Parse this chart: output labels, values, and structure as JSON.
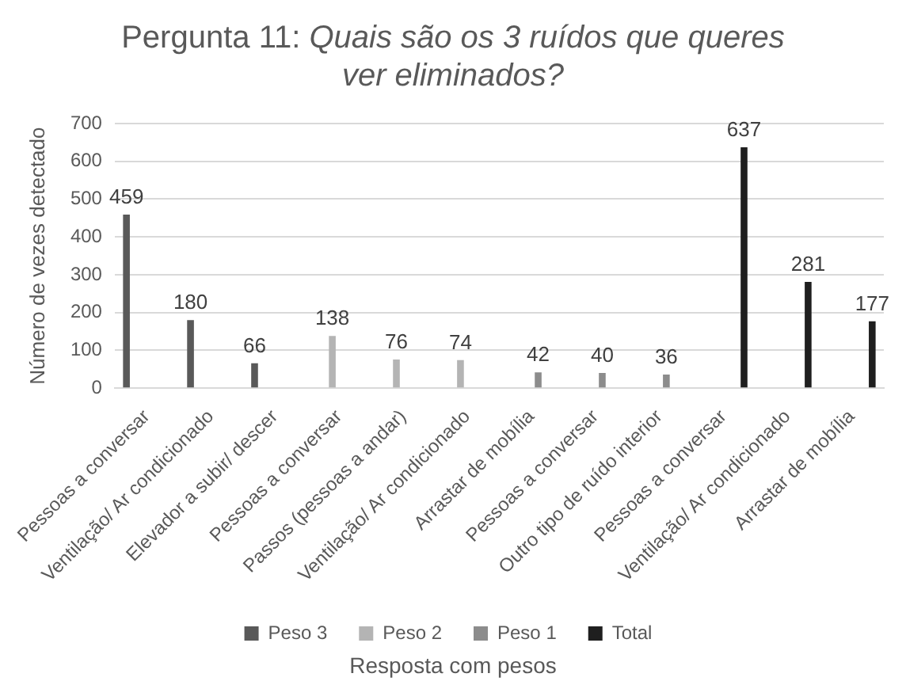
{
  "chart_data": {
    "type": "bar",
    "title": "Pergunta 11: Quais são os 3 ruídos que queres ver eliminados?",
    "xlabel": "Resposta com pesos",
    "ylabel": "Número de vezes detectado",
    "categories": [
      "Pessoas a conversar",
      "Ventilação/ Ar condicionado",
      "Elevador a subir/ descer",
      "Pessoas a conversar",
      "Passos (pessoas a andar)",
      "Ventilação/ Ar condicionado",
      "Arrastar de mobília",
      "Pessoas a conversar",
      "Outro tipo de ruído interior",
      "Pessoas a conversar",
      "Ventilação/ Ar condicionado",
      "Arrastar de mobília"
    ],
    "series": [
      {
        "name": "Peso 3",
        "color": "#595959",
        "values": [
          459,
          180,
          66,
          null,
          null,
          null,
          null,
          null,
          null,
          null,
          null,
          null
        ]
      },
      {
        "name": "Peso 2",
        "color": "#b4b4b4",
        "values": [
          null,
          null,
          null,
          138,
          76,
          74,
          null,
          null,
          null,
          null,
          null,
          null
        ]
      },
      {
        "name": "Peso 1",
        "color": "#8c8c8c",
        "values": [
          null,
          null,
          null,
          null,
          null,
          null,
          42,
          40,
          36,
          null,
          null,
          null
        ]
      },
      {
        "name": "Total",
        "color": "#1f1f1f",
        "values": [
          null,
          null,
          null,
          null,
          null,
          null,
          null,
          null,
          null,
          637,
          281,
          177
        ]
      }
    ],
    "ylim": [
      0,
      700
    ],
    "yticks": [
      0,
      100,
      200,
      300,
      400,
      500,
      600,
      700
    ],
    "grid": "y",
    "legend": "bottom",
    "data_labels": true
  }
}
